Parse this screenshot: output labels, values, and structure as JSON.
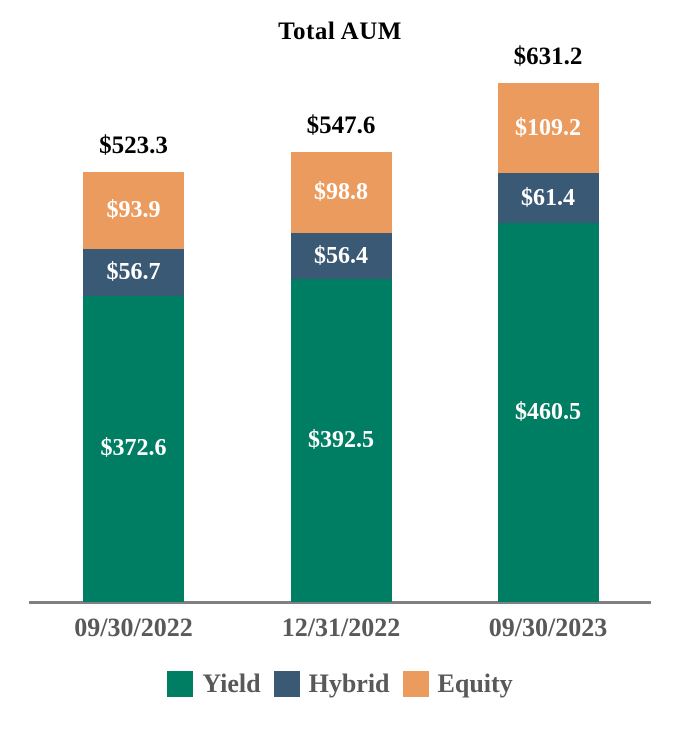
{
  "chart_data": {
    "type": "bar",
    "stacked": true,
    "title": "Total AUM",
    "value_prefix": "$",
    "categories": [
      "09/30/2022",
      "12/31/2022",
      "09/30/2023"
    ],
    "series": [
      {
        "name": "Yield",
        "color": "#007E64",
        "values": [
          372.6,
          392.5,
          460.5
        ]
      },
      {
        "name": "Hybrid",
        "color": "#3A5974",
        "values": [
          56.7,
          56.4,
          61.4
        ]
      },
      {
        "name": "Equity",
        "color": "#EB9B5E",
        "values": [
          93.9,
          98.8,
          109.2
        ]
      }
    ],
    "totals": [
      523.3,
      547.6,
      631.2
    ],
    "legend_position": "bottom",
    "grid": false,
    "xlabel": "",
    "ylabel": "",
    "ylim": [
      0,
      640
    ]
  },
  "styles": {
    "axis_color": "#808080",
    "tick_label_color": "#595959",
    "total_label_color": "#000000",
    "segment_label_color": "#FFFFFF",
    "background": "#FFFFFF"
  }
}
